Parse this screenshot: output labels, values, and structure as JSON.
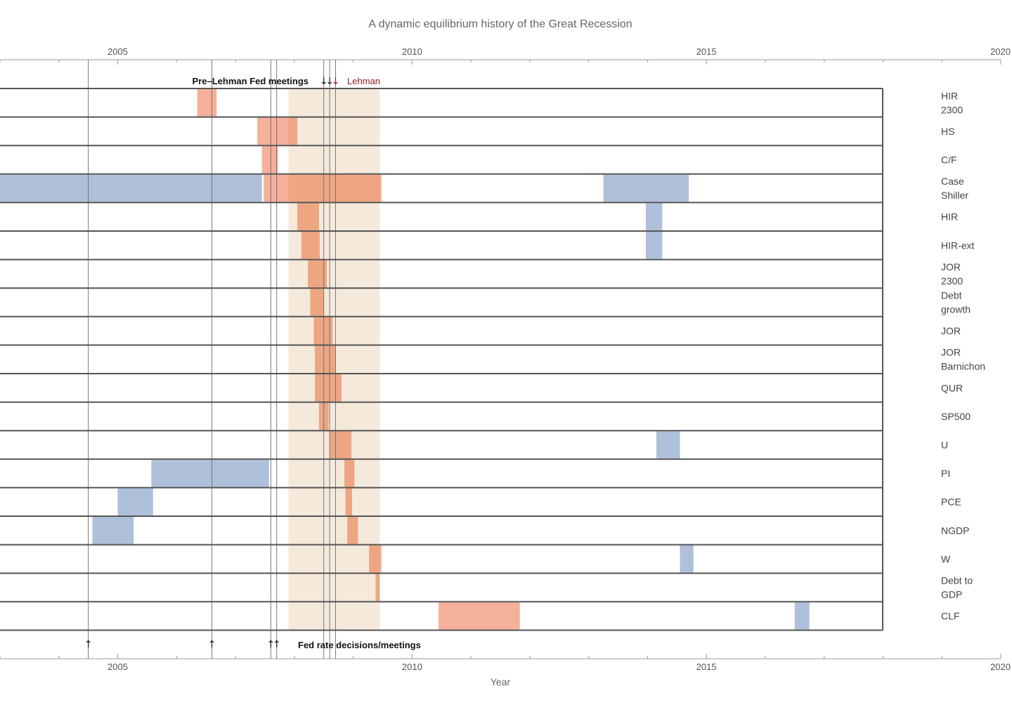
{
  "chart_data": {
    "type": "timeline",
    "title": "A dynamic equilibrium history of the Great Recession",
    "xlabel": "Year",
    "xlim": [
      2003.0,
      2020.0
    ],
    "x_ticks": [
      2005,
      2010,
      2015,
      2020
    ],
    "shaded_period": {
      "start": 2007.9,
      "end": 2009.45
    },
    "colors": {
      "positive": "#f4b09a",
      "positive_overlap": "#eea682",
      "negative": "#afc0da",
      "shade": "#f5e9dc",
      "frame": "#555555"
    },
    "rows": [
      {
        "label": [
          "HIR",
          "2300"
        ],
        "bars": [
          {
            "start": 2006.35,
            "end": 2006.68,
            "kind": "positive"
          }
        ]
      },
      {
        "label": [
          "HS"
        ],
        "bars": [
          {
            "start": 2007.37,
            "end": 2008.05,
            "kind": "positive"
          }
        ]
      },
      {
        "label": [
          "C/F"
        ],
        "bars": [
          {
            "start": 2007.45,
            "end": 2007.72,
            "kind": "positive"
          }
        ]
      },
      {
        "label": [
          "Case",
          "Shiller"
        ],
        "bars": [
          {
            "start": 2003.0,
            "end": 2007.45,
            "kind": "negative"
          },
          {
            "start": 2007.48,
            "end": 2009.48,
            "kind": "positive"
          },
          {
            "start": 2013.25,
            "end": 2014.7,
            "kind": "negative"
          }
        ]
      },
      {
        "label": [
          "HIR"
        ],
        "bars": [
          {
            "start": 2008.05,
            "end": 2008.42,
            "kind": "positive"
          },
          {
            "start": 2013.97,
            "end": 2014.25,
            "kind": "negative"
          }
        ]
      },
      {
        "label": [
          "HIR-ext"
        ],
        "bars": [
          {
            "start": 2008.12,
            "end": 2008.43,
            "kind": "positive"
          },
          {
            "start": 2013.97,
            "end": 2014.25,
            "kind": "negative"
          }
        ]
      },
      {
        "label": [
          "JOR",
          "2300"
        ],
        "bars": [
          {
            "start": 2008.23,
            "end": 2008.55,
            "kind": "positive"
          }
        ]
      },
      {
        "label": [
          "Debt",
          "growth"
        ],
        "bars": [
          {
            "start": 2008.27,
            "end": 2008.5,
            "kind": "positive"
          }
        ]
      },
      {
        "label": [
          "JOR"
        ],
        "bars": [
          {
            "start": 2008.33,
            "end": 2008.65,
            "kind": "positive"
          }
        ]
      },
      {
        "label": [
          "JOR",
          "Barnichon"
        ],
        "bars": [
          {
            "start": 2008.35,
            "end": 2008.7,
            "kind": "positive"
          }
        ]
      },
      {
        "label": [
          "QUR"
        ],
        "bars": [
          {
            "start": 2008.35,
            "end": 2008.8,
            "kind": "positive"
          }
        ]
      },
      {
        "label": [
          "SP500"
        ],
        "bars": [
          {
            "start": 2008.42,
            "end": 2008.58,
            "kind": "positive"
          }
        ]
      },
      {
        "label": [
          "U"
        ],
        "bars": [
          {
            "start": 2008.6,
            "end": 2008.97,
            "kind": "positive"
          },
          {
            "start": 2014.15,
            "end": 2014.55,
            "kind": "negative"
          }
        ]
      },
      {
        "label": [
          "PI"
        ],
        "bars": [
          {
            "start": 2005.57,
            "end": 2007.57,
            "kind": "negative"
          },
          {
            "start": 2008.85,
            "end": 2009.02,
            "kind": "positive"
          }
        ]
      },
      {
        "label": [
          "PCE"
        ],
        "bars": [
          {
            "start": 2005.0,
            "end": 2005.6,
            "kind": "negative"
          },
          {
            "start": 2008.87,
            "end": 2008.98,
            "kind": "positive"
          }
        ]
      },
      {
        "label": [
          "NGDP"
        ],
        "bars": [
          {
            "start": 2004.57,
            "end": 2005.27,
            "kind": "negative"
          },
          {
            "start": 2008.9,
            "end": 2009.08,
            "kind": "positive"
          }
        ]
      },
      {
        "label": [
          "W"
        ],
        "bars": [
          {
            "start": 2009.27,
            "end": 2009.48,
            "kind": "positive"
          },
          {
            "start": 2014.55,
            "end": 2014.78,
            "kind": "negative"
          }
        ]
      },
      {
        "label": [
          "Debt to",
          "GDP"
        ],
        "bars": [
          {
            "start": 2009.38,
            "end": 2009.45,
            "kind": "positive"
          }
        ]
      },
      {
        "label": [
          "CLF"
        ],
        "bars": [
          {
            "start": 2010.45,
            "end": 2011.83,
            "kind": "positive"
          },
          {
            "start": 2016.5,
            "end": 2016.75,
            "kind": "negative"
          }
        ]
      }
    ],
    "fed_meeting_lines": [
      2004.5,
      2006.6,
      2007.6,
      2007.7,
      2008.5,
      2008.6,
      2008.7
    ],
    "pre_lehman_label": "Pre–Lehman Fed meetings",
    "pre_lehman_arrows": [
      "↓",
      "↓",
      "↓"
    ],
    "lehman_label": "Lehman",
    "fed_rate_label": "Fed rate decisions/meetings",
    "fed_rate_arrows": [
      "↑",
      "↑",
      "↑",
      "↑"
    ]
  }
}
